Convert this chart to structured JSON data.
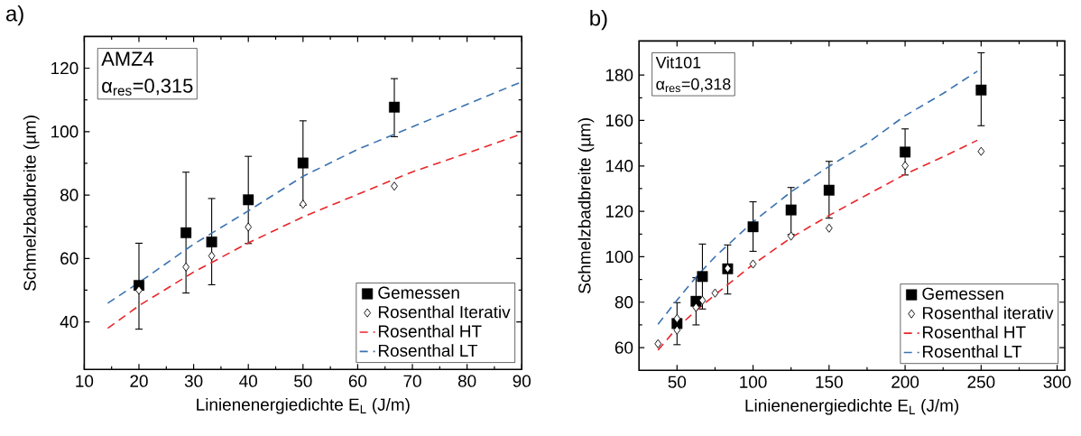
{
  "chart_data": [
    {
      "type": "scatter",
      "title": "a)",
      "xlabel": "Linienenergiedichte E$_{L}$ (J/m)",
      "ylabel": "Schmelzbadbreite (µm)",
      "annotations": [
        "AMZ4",
        "α$_{res}$=0,315"
      ],
      "xlim": [
        10,
        90
      ],
      "ylim": [
        25,
        130
      ],
      "xticks": [
        10,
        20,
        30,
        40,
        50,
        60,
        70,
        80,
        90
      ],
      "yticks": [
        40,
        60,
        80,
        100,
        120
      ],
      "legend": "bottom right",
      "series": [
        {
          "name": "Gemessen",
          "type": "scatter",
          "color": "#000000",
          "marker": "square",
          "x": [
            20,
            28.6,
            33.3,
            40,
            50,
            66.7
          ],
          "values": [
            51.5,
            68.1,
            65.2,
            78.5,
            90.1,
            107.7
          ],
          "errors": [
            [
              37.7,
              64.8
            ],
            [
              49.1,
              87.2
            ],
            [
              51.7,
              78.9
            ],
            [
              64.7,
              92.2
            ],
            [
              76.8,
              103.4
            ],
            [
              98.4,
              116.7
            ]
          ]
        },
        {
          "name": "Rosenthal Iterativ",
          "type": "scatter",
          "color": "#000000",
          "marker": "diamond",
          "x": [
            20,
            28.6,
            33.3,
            40,
            50,
            66.7
          ],
          "values": [
            50.0,
            57.3,
            60.8,
            69.9,
            77.1,
            82.8
          ]
        },
        {
          "name": "Rosenthal HT",
          "type": "line",
          "color": "#e8262a",
          "line_style": "dashed",
          "x": [
            14.3,
            20,
            30,
            40,
            50,
            60,
            70,
            80,
            90
          ],
          "values": [
            38.0,
            45.1,
            55.7,
            64.9,
            73.1,
            80.2,
            87.3,
            93.2,
            99.3
          ]
        },
        {
          "name": "Rosenthal LT",
          "type": "line",
          "color": "#3a72b0",
          "line_style": "dashed",
          "x": [
            14.3,
            20,
            30,
            40,
            50,
            60,
            70,
            80,
            90
          ],
          "values": [
            45.9,
            52.4,
            64.5,
            75.0,
            85.9,
            94.4,
            101.5,
            108.6,
            115.7
          ]
        }
      ]
    },
    {
      "type": "scatter",
      "title": "b)",
      "xlabel": "Linienenergiedichte E$_{L}$ (J/m)",
      "ylabel": "Schmelzbadbreite (µm)",
      "annotations": [
        "Vit101",
        "α$_{res}$=0,318"
      ],
      "xlim": [
        25,
        305
      ],
      "ylim": [
        50,
        195
      ],
      "xticks": [
        50,
        100,
        150,
        200,
        250,
        300
      ],
      "yticks": [
        60,
        80,
        100,
        120,
        140,
        160,
        180
      ],
      "legend": "bottom right",
      "series": [
        {
          "name": "Gemessen",
          "type": "scatter",
          "color": "#000000",
          "marker": "square",
          "x": [
            50,
            62.5,
            66.7,
            83.3,
            100,
            125,
            150,
            200,
            250
          ],
          "values": [
            70.6,
            80.4,
            91.3,
            94.7,
            113.2,
            120.6,
            129.3,
            146.1,
            173.4
          ],
          "errors": [
            [
              61.3,
              79.8
            ],
            [
              70.0,
              90.8
            ],
            [
              77.0,
              105.6
            ],
            [
              83.6,
              105.2
            ],
            [
              102.4,
              124.2
            ],
            [
              109.8,
              130.5
            ],
            [
              117.0,
              142.0
            ],
            [
              136.0,
              156.3
            ],
            [
              157.7,
              189.8
            ]
          ]
        },
        {
          "name": "Rosenthal iterativ",
          "type": "scatter",
          "color": "#000000",
          "marker": "diamond",
          "x": [
            37.5,
            50,
            50,
            62.5,
            66.7,
            75,
            83.3,
            100,
            125,
            150,
            200,
            250
          ],
          "values": [
            61.7,
            72.8,
            67.7,
            77.7,
            80.8,
            84.0,
            94.9,
            96.8,
            109.1,
            112.6,
            140.1,
            146.4
          ]
        },
        {
          "name": "Rosenthal HT",
          "type": "line",
          "color": "#e8262a",
          "line_style": "dashed",
          "x": [
            37.5,
            50,
            62.5,
            75,
            100,
            125,
            150,
            175,
            200,
            225,
            247.5
          ],
          "values": [
            58.9,
            68.7,
            76.3,
            83.3,
            96.6,
            108.4,
            118.2,
            127.3,
            136.3,
            144.0,
            151.3
          ]
        },
        {
          "name": "Rosenthal LT",
          "type": "line",
          "color": "#3a72b0",
          "line_style": "dashed",
          "x": [
            37.5,
            50,
            62.5,
            75,
            100,
            125,
            150,
            175,
            200,
            225,
            247.5
          ],
          "values": [
            70.3,
            80.9,
            91.0,
            100.0,
            115.4,
            128.6,
            139.8,
            150.0,
            162.1,
            171.9,
            181.7
          ]
        }
      ]
    }
  ]
}
